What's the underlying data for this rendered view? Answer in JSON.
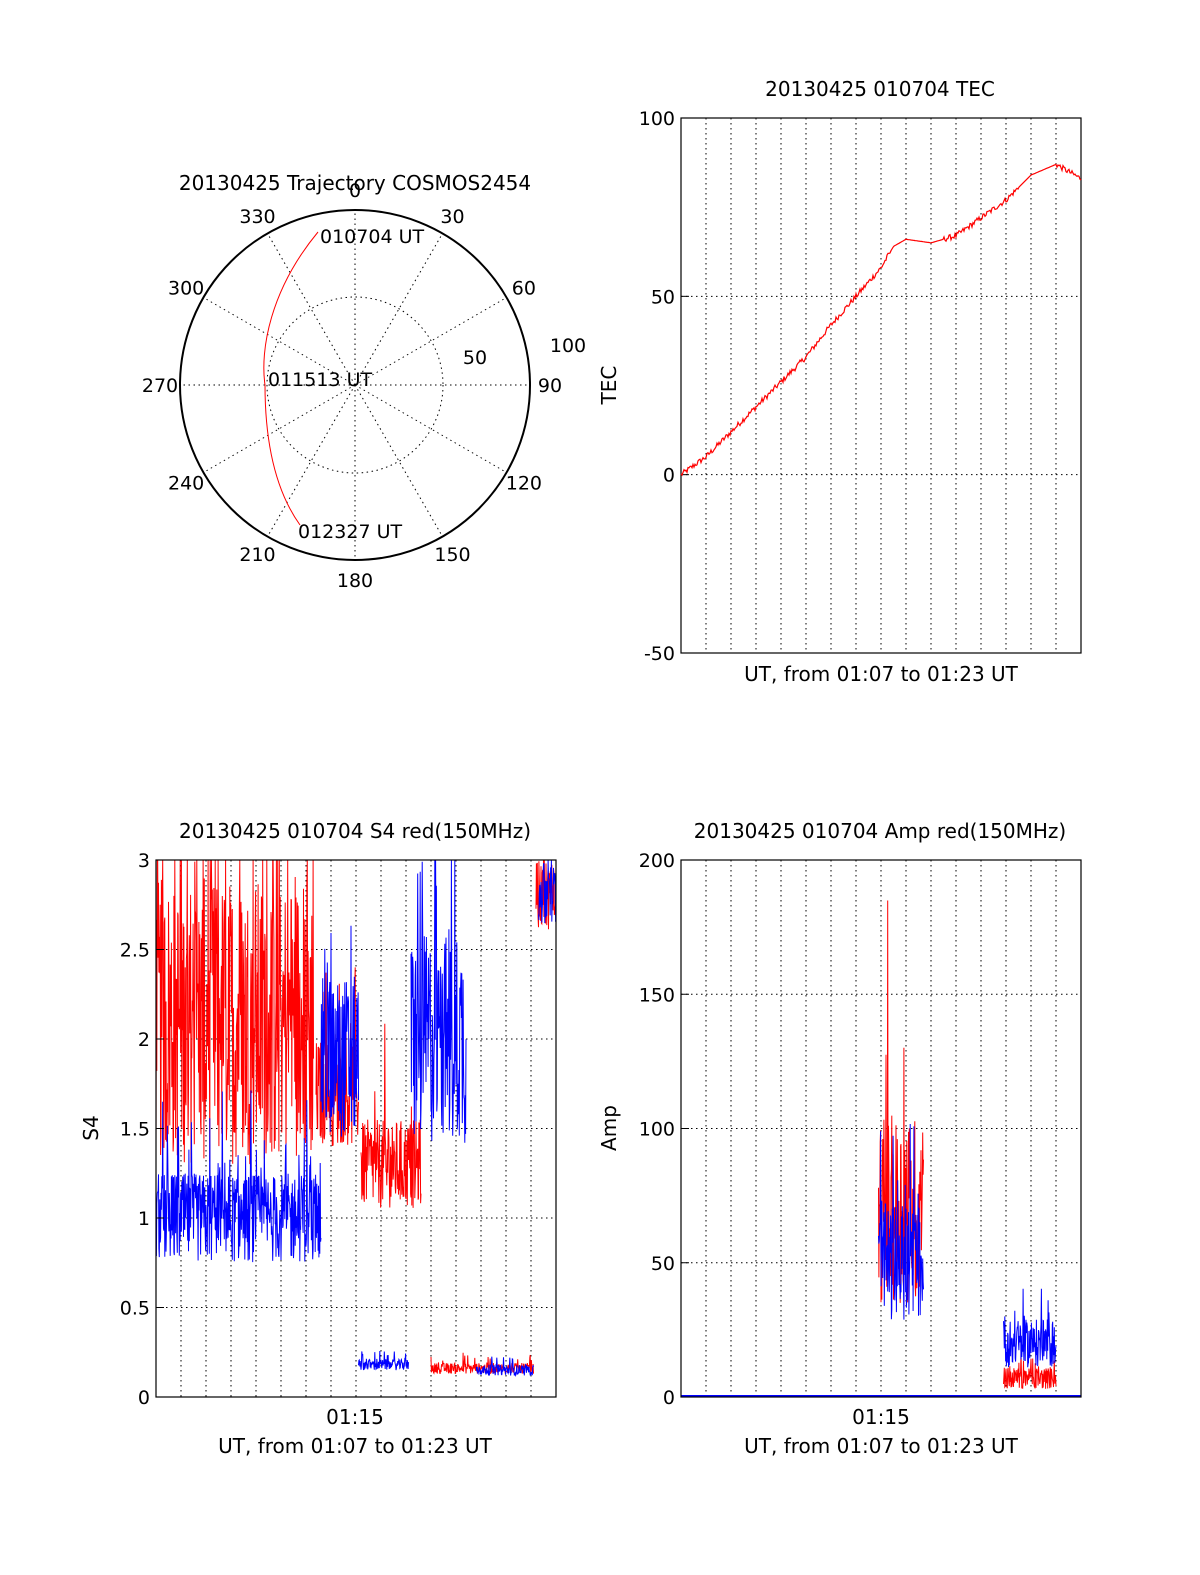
{
  "colors": {
    "red": "#ff0000",
    "blue": "#0000ff"
  },
  "polar": {
    "title": "20130425 Trajectory COSMOS2454",
    "azimuth_labels": [
      "0",
      "30",
      "60",
      "90",
      "120",
      "150",
      "180",
      "210",
      "240",
      "270",
      "300",
      "330"
    ],
    "radial_labels": [
      "50",
      "100"
    ],
    "start_label": "010704 UT",
    "mid_label": "011513 UT",
    "end_label": "012327 UT"
  },
  "chart_data": [
    {
      "type": "line",
      "title": "20130425 010704 TEC",
      "xlabel": "UT, from 01:07 to 01:23 UT",
      "ylabel": "TEC",
      "ylim": [
        -50,
        100
      ],
      "yticks": [
        "-50",
        "0",
        "50",
        "100"
      ],
      "x_minutes": [
        0,
        1,
        2,
        3,
        4,
        5,
        6,
        7,
        8,
        8.5,
        9,
        10,
        11,
        12,
        13,
        14,
        15,
        16
      ],
      "series": [
        {
          "color": "red",
          "values": [
            0,
            5,
            12,
            19,
            26,
            33,
            42,
            50,
            58,
            64,
            66,
            65,
            67,
            72,
            77,
            84,
            87,
            83
          ]
        }
      ]
    },
    {
      "type": "line",
      "title": "20130425 010704 S4 red(150MHz)",
      "xlabel": "UT, from 01:07 to 01:23 UT",
      "ylabel": "S4",
      "ylim": [
        0,
        3
      ],
      "yticks": [
        "0",
        "0.5",
        "1",
        "1.5",
        "2",
        "2.5",
        "3"
      ],
      "xtick_label": "01:15",
      "series": [
        {
          "color": "red",
          "segments": [
            [
              0,
              6.3,
              2.1,
              0.8
            ],
            [
              6.4,
              8.1,
              1.7,
              0.3
            ],
            [
              8.2,
              10.6,
              1.3,
              0.25
            ],
            [
              11,
              15.1,
              0.16,
              0.03
            ],
            [
              15.2,
              16,
              2.8,
              0.2
            ]
          ]
        },
        {
          "color": "blue",
          "segments": [
            [
              0,
              6.6,
              1.0,
              0.25
            ],
            [
              6.6,
              8.1,
              1.9,
              0.45
            ],
            [
              8.1,
              10.1,
              0.18,
              0.03
            ],
            [
              10.2,
              12.4,
              2.0,
              0.6
            ],
            [
              12.8,
              15.1,
              0.15,
              0.03
            ],
            [
              15.3,
              16,
              2.8,
              0.2
            ]
          ]
        }
      ]
    },
    {
      "type": "line",
      "title": "20130425 010704 Amp red(150MHz)",
      "xlabel": "UT, from 01:07 to 01:23 UT",
      "ylabel": "Amp",
      "ylim": [
        0,
        200
      ],
      "yticks": [
        "0",
        "50",
        "100",
        "150",
        "200"
      ],
      "xtick_label": "01:15",
      "series": [
        {
          "color": "red",
          "segments": [
            [
              7.9,
              9.7,
              70,
              35
            ],
            [
              12.9,
              15,
              7,
              4
            ]
          ]
        },
        {
          "color": "blue",
          "segments": [
            [
              7.9,
              9.7,
              50,
              22
            ],
            [
              12.9,
              15,
              20,
              9
            ]
          ]
        }
      ]
    }
  ]
}
